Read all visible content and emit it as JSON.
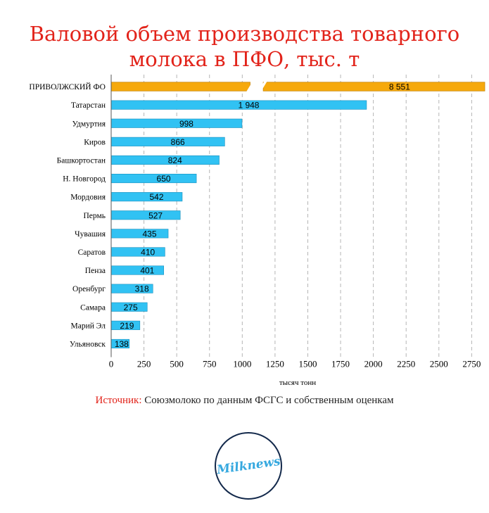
{
  "title_line1": "Валовой объем производства товарного",
  "title_line2": "молока в ПФО, тыс. т",
  "chart_data": {
    "type": "bar",
    "orientation": "horizontal",
    "categories": [
      "ПРИВОЛЖСКИЙ ФО",
      "Татарстан",
      "Удмуртия",
      "Киров",
      "Башкортостан",
      "Н. Новгород",
      "Мордовия",
      "Пермь",
      "Чувашия",
      "Саратов",
      "Пенза",
      "Оренбург",
      "Самара",
      "Марий Эл",
      "Ульяновск"
    ],
    "values": [
      8551,
      1948,
      998,
      866,
      824,
      650,
      542,
      527,
      435,
      410,
      401,
      318,
      275,
      219,
      138
    ],
    "value_labels": [
      "8 551",
      "1 948",
      "998",
      "866",
      "824",
      "650",
      "542",
      "527",
      "435",
      "410",
      "401",
      "318",
      "275",
      "219",
      "138"
    ],
    "xlim": [
      0,
      2850
    ],
    "xticks": [
      0,
      250,
      500,
      750,
      1000,
      1250,
      1500,
      1750,
      2000,
      2250,
      2500,
      2750
    ],
    "xtick_labels": [
      "0",
      "250",
      "500",
      "750",
      "1000",
      "1250",
      "1500",
      "1750",
      "2000",
      "2250",
      "2500",
      "2750"
    ],
    "axis_break": true,
    "xlabel": "тысяч тонн",
    "grid": "vertical dashed",
    "colors": {
      "total": "#f6a90c",
      "regions": "#31c2f3",
      "bar_border": "#1a8fbd",
      "total_border": "#c9870a"
    }
  },
  "source_label": "Источник:",
  "source_text": "Союзмолоко по данным ФСГС и собственным оценкам",
  "logo_text": "Milknews"
}
